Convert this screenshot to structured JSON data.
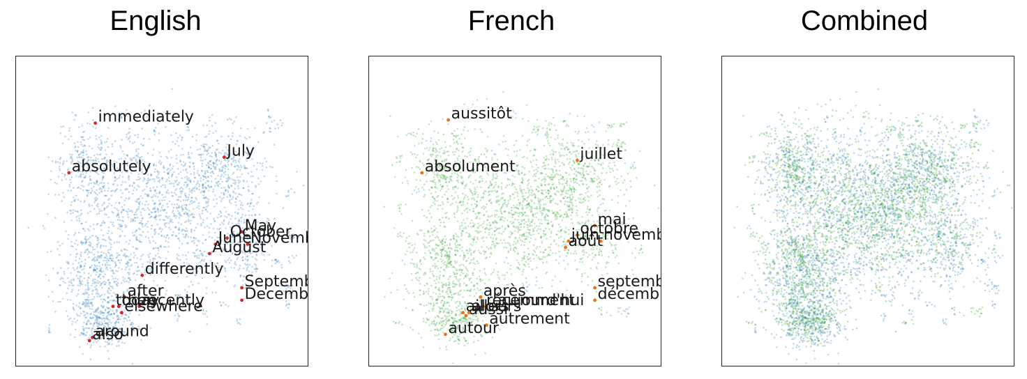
{
  "colors": {
    "english_points": "#1f77b4",
    "french_points": "#2ca02c",
    "english_highlight": "#d62728",
    "french_highlight": "#e8731a",
    "frame": "#222222"
  },
  "chart_data": [
    {
      "type": "scatter",
      "title": "English",
      "xlabel": "",
      "ylabel": "",
      "axes_ticks": false,
      "series": [
        {
          "points_color": "english"
        }
      ],
      "labeled_words": [
        {
          "text": "immediately",
          "x": 0.28,
          "y": 0.21
        },
        {
          "text": "July",
          "x": 0.72,
          "y": 0.32
        },
        {
          "text": "absolutely",
          "x": 0.19,
          "y": 0.37
        },
        {
          "text": "May",
          "x": 0.78,
          "y": 0.56
        },
        {
          "text": "October",
          "x": 0.73,
          "y": 0.58
        },
        {
          "text": "June",
          "x": 0.69,
          "y": 0.6
        },
        {
          "text": "November",
          "x": 0.8,
          "y": 0.6
        },
        {
          "text": "August",
          "x": 0.67,
          "y": 0.63
        },
        {
          "text": "differently",
          "x": 0.44,
          "y": 0.7
        },
        {
          "text": "September",
          "x": 0.78,
          "y": 0.74
        },
        {
          "text": "after",
          "x": 0.38,
          "y": 0.77
        },
        {
          "text": "December",
          "x": 0.78,
          "y": 0.78
        },
        {
          "text": "today",
          "x": 0.34,
          "y": 0.8
        },
        {
          "text": "then",
          "x": 0.36,
          "y": 0.8
        },
        {
          "text": "recently",
          "x": 0.43,
          "y": 0.8
        },
        {
          "text": "elsewhere",
          "x": 0.37,
          "y": 0.82
        },
        {
          "text": "around",
          "x": 0.27,
          "y": 0.9
        },
        {
          "text": "also",
          "x": 0.26,
          "y": 0.91
        }
      ]
    },
    {
      "type": "scatter",
      "title": "French",
      "xlabel": "",
      "ylabel": "",
      "axes_ticks": false,
      "series": [
        {
          "points_color": "french"
        }
      ],
      "labeled_words": [
        {
          "text": "aussitôt",
          "x": 0.28,
          "y": 0.2
        },
        {
          "text": "juillet",
          "x": 0.72,
          "y": 0.33
        },
        {
          "text": "absolument",
          "x": 0.19,
          "y": 0.37
        },
        {
          "text": "mai",
          "x": 0.78,
          "y": 0.54
        },
        {
          "text": "octobre",
          "x": 0.72,
          "y": 0.57
        },
        {
          "text": "juin",
          "x": 0.69,
          "y": 0.59
        },
        {
          "text": "novembre",
          "x": 0.8,
          "y": 0.59
        },
        {
          "text": "août",
          "x": 0.68,
          "y": 0.61
        },
        {
          "text": "septembre",
          "x": 0.78,
          "y": 0.74
        },
        {
          "text": "après",
          "x": 0.39,
          "y": 0.77
        },
        {
          "text": "décembre",
          "x": 0.78,
          "y": 0.78
        },
        {
          "text": "récemment",
          "x": 0.4,
          "y": 0.8
        },
        {
          "text": "aujourd'hui",
          "x": 0.44,
          "y": 0.8
        },
        {
          "text": "ailleurs",
          "x": 0.33,
          "y": 0.82
        },
        {
          "text": "aussi",
          "x": 0.34,
          "y": 0.83
        },
        {
          "text": "alors",
          "x": 0.35,
          "y": 0.82
        },
        {
          "text": "autrement",
          "x": 0.41,
          "y": 0.86
        },
        {
          "text": "autour",
          "x": 0.27,
          "y": 0.89
        }
      ]
    },
    {
      "type": "scatter",
      "title": "Combined",
      "xlabel": "",
      "ylabel": "",
      "axes_ticks": false,
      "series": [
        {
          "points_color": "english"
        },
        {
          "points_color": "french"
        }
      ],
      "labeled_words": []
    }
  ]
}
